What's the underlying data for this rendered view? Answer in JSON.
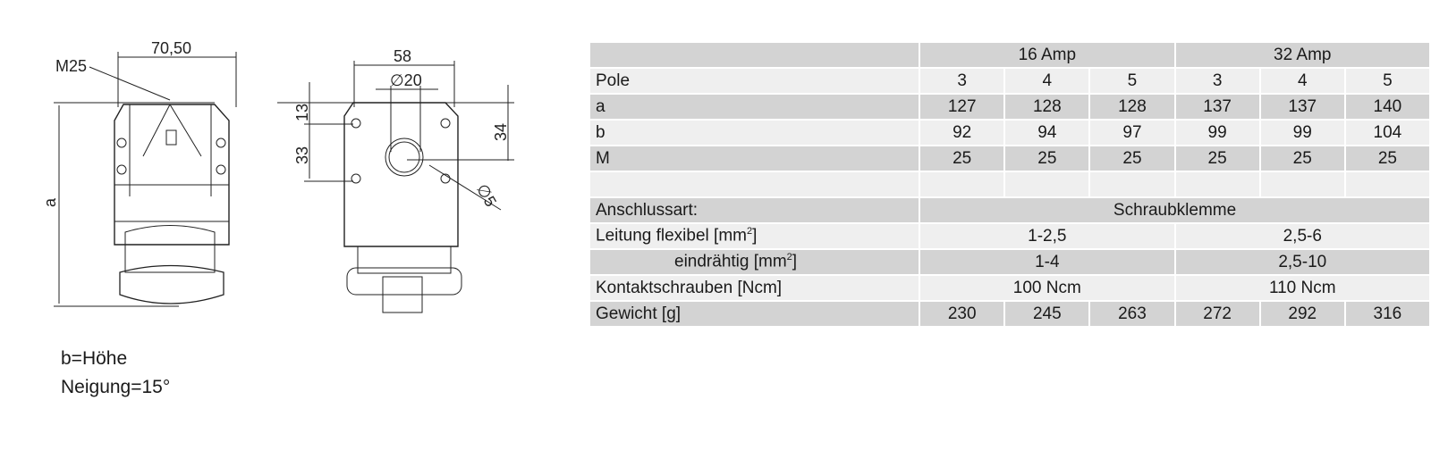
{
  "drawing": {
    "side_view": {
      "width_label": "70,50",
      "thread_label": "M25",
      "height_label": "a"
    },
    "back_view": {
      "width_label": "58",
      "hole_diameter_label": "∅20",
      "dim_top_label": "13",
      "dim_spacing_label": "33",
      "dim_right_label": "34",
      "screw_hole_label": "∅5"
    }
  },
  "notes": {
    "line1": "b=Höhe",
    "line2": "Neigung=15°"
  },
  "table": {
    "groups": [
      "16 Amp",
      "32 Amp"
    ],
    "rows": [
      {
        "label": "Pole",
        "values": [
          "3",
          "4",
          "5",
          "3",
          "4",
          "5"
        ]
      },
      {
        "label": "a",
        "values": [
          "127",
          "128",
          "128",
          "137",
          "137",
          "140"
        ]
      },
      {
        "label": "b",
        "values": [
          "92",
          "94",
          "97",
          "99",
          "99",
          "104"
        ]
      },
      {
        "label": "M",
        "values": [
          "25",
          "25",
          "25",
          "25",
          "25",
          "25"
        ]
      }
    ],
    "anschlussart": {
      "label": "Anschlussart:",
      "value": "Schraubklemme"
    },
    "leitung_flexibel": {
      "label": "Leitung  flexibel [mm",
      "sup": "2",
      "close": "]",
      "values": [
        "1-2,5",
        "2,5-6"
      ]
    },
    "eindraehtig": {
      "label": "eindrähtig [mm",
      "sup": "2",
      "close": "]",
      "values": [
        "1-4",
        "2,5-10"
      ]
    },
    "kontaktschrauben": {
      "label": "Kontaktschrauben [Ncm]",
      "values": [
        "100 Ncm",
        "110 Ncm"
      ]
    },
    "gewicht": {
      "label": "Gewicht [g]",
      "values": [
        "230",
        "245",
        "263",
        "272",
        "292",
        "316"
      ]
    }
  }
}
